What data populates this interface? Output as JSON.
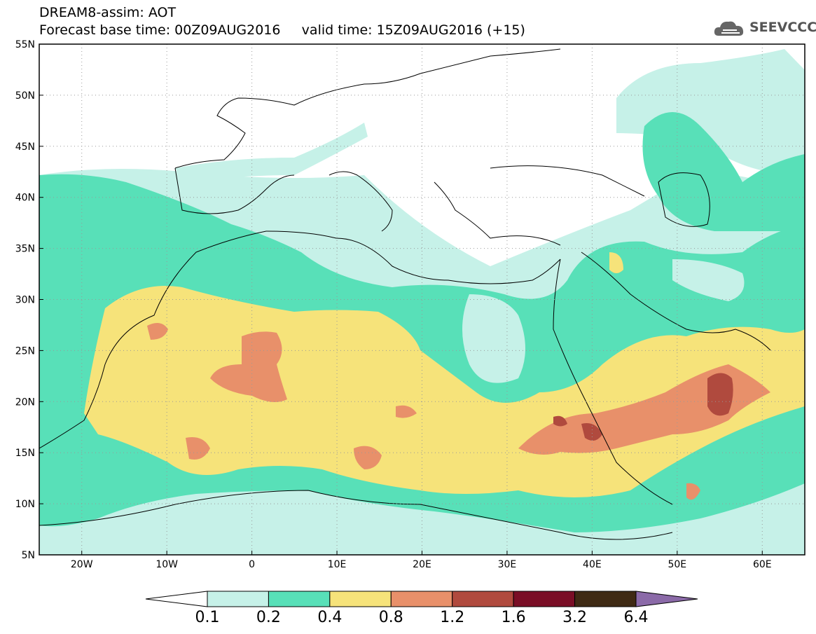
{
  "header": {
    "line1": "DREAM8-assim: AOT",
    "line2": "Forecast base time: 00Z09AUG2016     valid time: 15Z09AUG2016 (+15)"
  },
  "logo": {
    "text": "SEEVCCC",
    "icon": "cloud-logo-icon"
  },
  "map": {
    "lon_range": [
      -25,
      65
    ],
    "lat_range": [
      5,
      55
    ],
    "lon_ticks": [
      "20W",
      "10W",
      "0",
      "10E",
      "20E",
      "30E",
      "40E",
      "50E",
      "60E"
    ],
    "lat_ticks": [
      "55N",
      "50N",
      "45N",
      "40N",
      "35N",
      "30N",
      "25N",
      "20N",
      "15N",
      "10N",
      "5N"
    ],
    "grid": "dotted"
  },
  "colorbar": {
    "labels": [
      "0.1",
      "0.2",
      "0.4",
      "0.8",
      "1.2",
      "1.6",
      "3.2",
      "6.4"
    ],
    "colors": [
      "#ffffff",
      "#c6f1e8",
      "#58e0b8",
      "#f6e37a",
      "#e8906a",
      "#b04a3e",
      "#7a0e26",
      "#3f2a14",
      "#8b6aa8"
    ]
  }
}
